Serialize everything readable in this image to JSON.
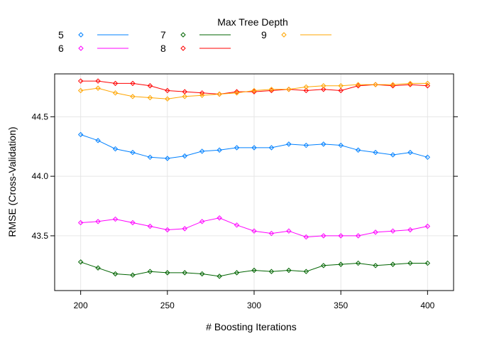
{
  "chart_data": {
    "type": "line",
    "legend_title": "Max Tree Depth",
    "legend_placement": "top",
    "xlabel": "# Boosting Iterations",
    "ylabel": "RMSE (Cross-Validation)",
    "xlim": [
      185,
      415
    ],
    "ylim": [
      43.04,
      44.86
    ],
    "x_ticks": [
      200,
      250,
      300,
      350,
      400
    ],
    "y_ticks": [
      43.5,
      44.0,
      44.5
    ],
    "x_tick_labels": [
      "200",
      "250",
      "300",
      "350",
      "400"
    ],
    "y_tick_labels": [
      "43.5",
      "44.0",
      "44.5"
    ],
    "grid": true,
    "marker": "diamond",
    "x": [
      200,
      210,
      220,
      230,
      240,
      250,
      260,
      270,
      280,
      290,
      300,
      310,
      320,
      330,
      340,
      350,
      360,
      370,
      380,
      390,
      400
    ],
    "series": [
      {
        "name": "5",
        "color": "#0080ff",
        "values": [
          44.35,
          44.3,
          44.23,
          44.2,
          44.16,
          44.15,
          44.17,
          44.21,
          44.22,
          44.24,
          44.24,
          44.24,
          44.27,
          44.26,
          44.27,
          44.26,
          44.22,
          44.2,
          44.18,
          44.2,
          44.16
        ]
      },
      {
        "name": "6",
        "color": "#ff00ff",
        "values": [
          43.61,
          43.62,
          43.64,
          43.61,
          43.58,
          43.55,
          43.56,
          43.62,
          43.65,
          43.59,
          43.54,
          43.52,
          43.54,
          43.49,
          43.5,
          43.5,
          43.5,
          43.53,
          43.54,
          43.55,
          43.58
        ]
      },
      {
        "name": "7",
        "color": "#006400",
        "values": [
          43.28,
          43.23,
          43.18,
          43.17,
          43.2,
          43.19,
          43.19,
          43.18,
          43.16,
          43.19,
          43.21,
          43.2,
          43.21,
          43.2,
          43.25,
          43.26,
          43.27,
          43.25,
          43.26,
          43.27,
          43.27
        ]
      },
      {
        "name": "8",
        "color": "#ff0000",
        "values": [
          44.8,
          44.8,
          44.78,
          44.78,
          44.76,
          44.72,
          44.71,
          44.7,
          44.69,
          44.71,
          44.71,
          44.72,
          44.73,
          44.72,
          44.73,
          44.72,
          44.76,
          44.77,
          44.76,
          44.77,
          44.76
        ]
      },
      {
        "name": "9",
        "color": "#ffa500",
        "values": [
          44.72,
          44.74,
          44.7,
          44.67,
          44.66,
          44.65,
          44.67,
          44.68,
          44.69,
          44.7,
          44.72,
          44.73,
          44.73,
          44.75,
          44.76,
          44.76,
          44.77,
          44.77,
          44.77,
          44.78,
          44.78
        ]
      }
    ]
  }
}
